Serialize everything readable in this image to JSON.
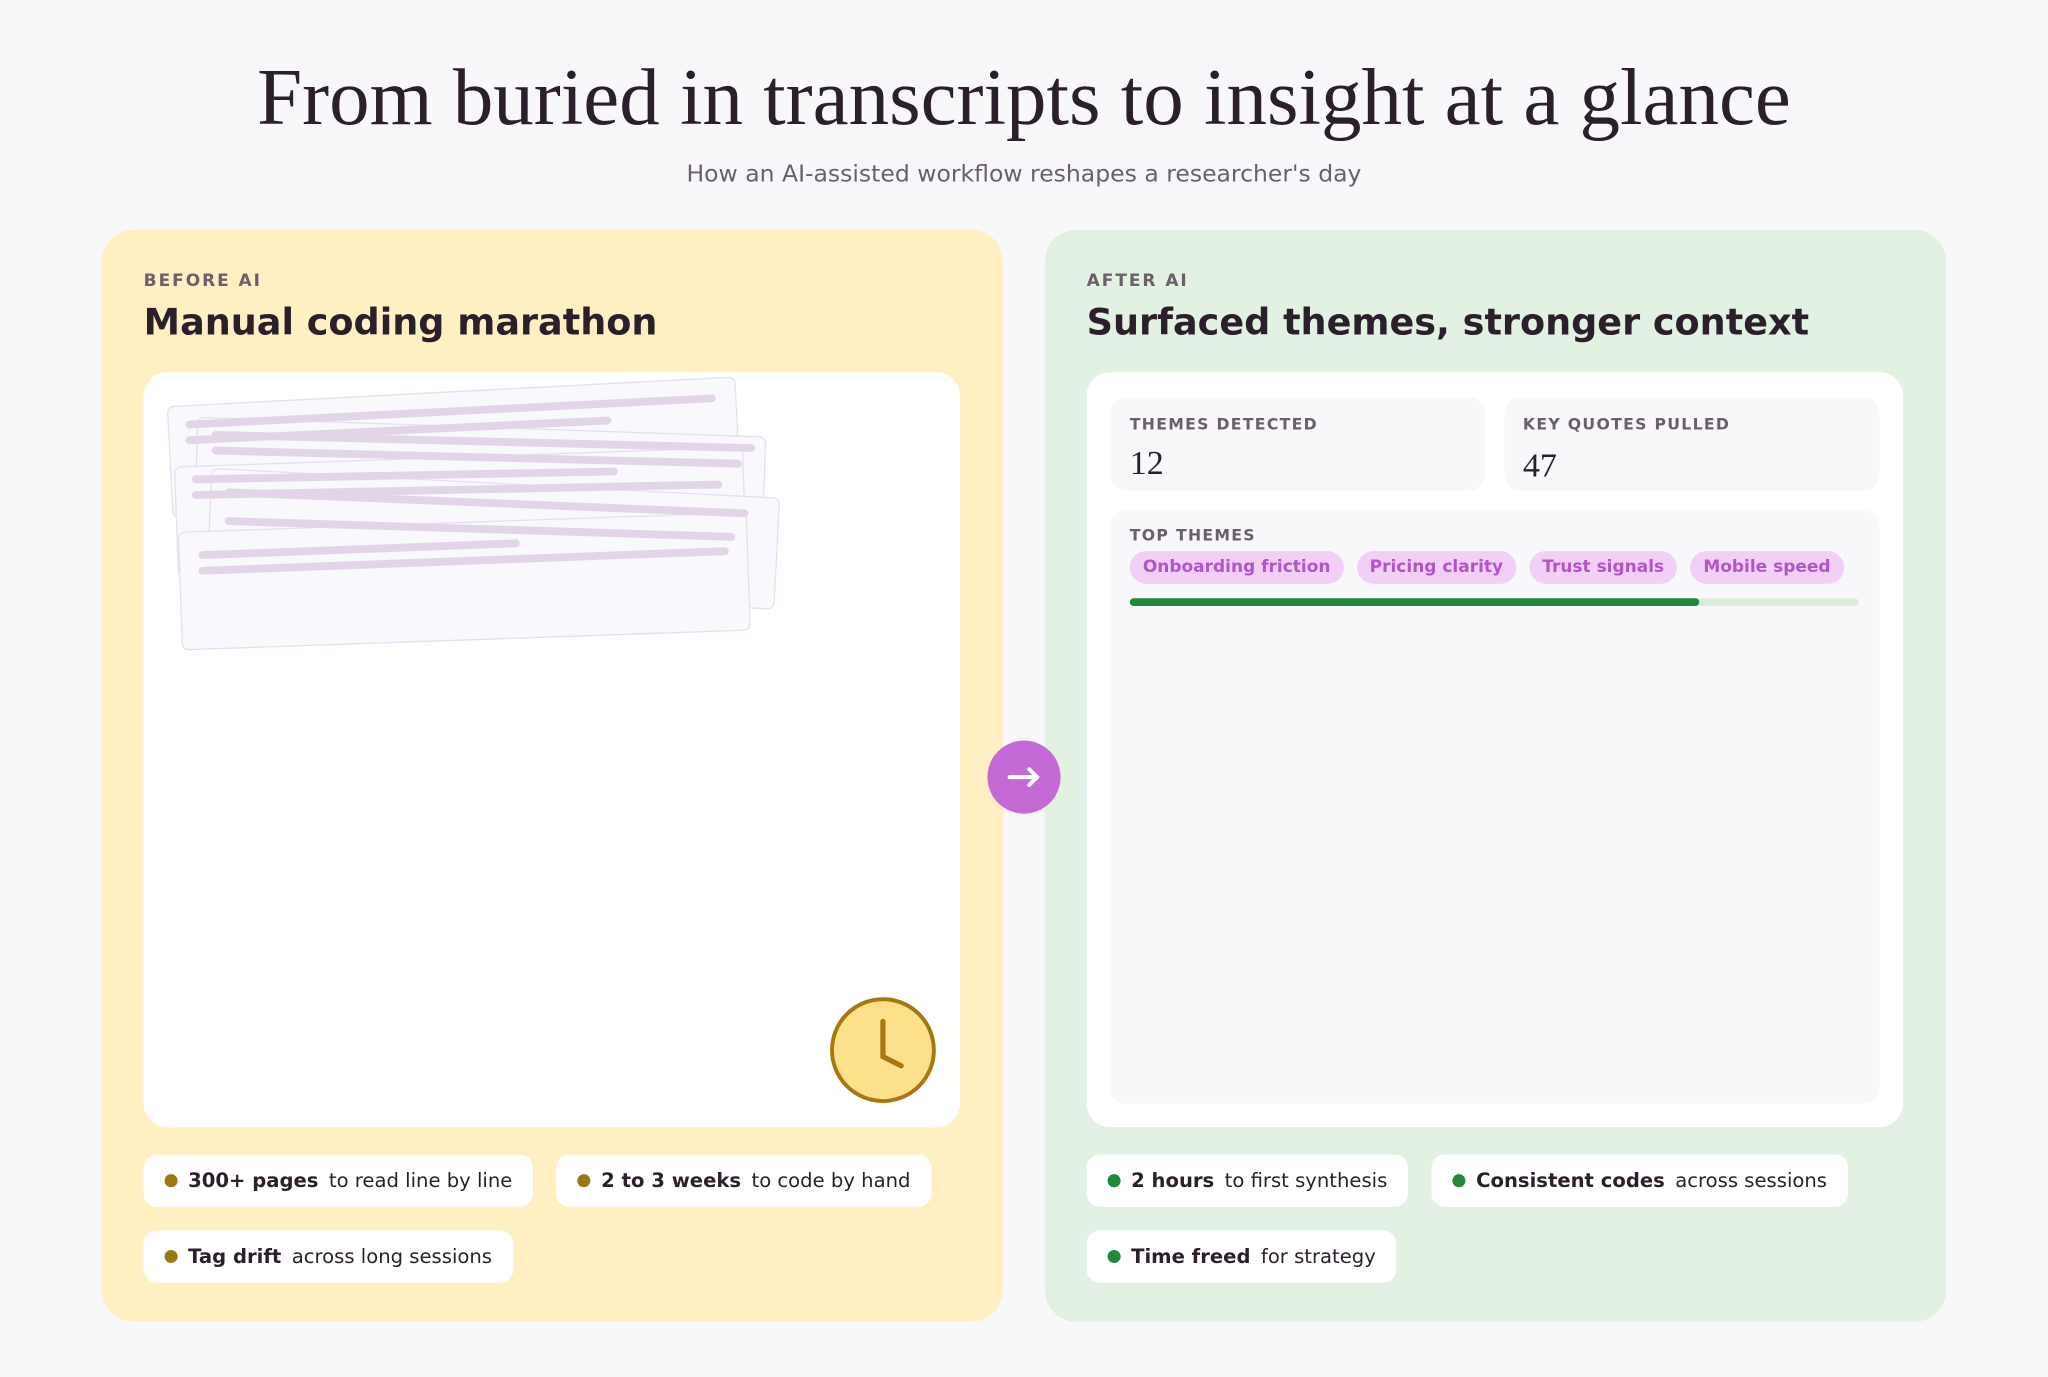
{
  "header": {
    "title": "From buried in transcripts to insight at a glance",
    "subtitle": "How an AI-assisted workflow reshapes a researcher's day"
  },
  "before": {
    "label": "BEFORE AI",
    "title": "Manual coding marathon",
    "stats": [
      {
        "bold": "300+ pages",
        "rest": "to read line by line"
      },
      {
        "bold": "2 to 3 weeks",
        "rest": "to code by hand"
      },
      {
        "bold": "Tag drift",
        "rest": "across long sessions"
      }
    ]
  },
  "after": {
    "label": "AFTER AI",
    "title": "Surfaced themes, stronger context",
    "metrics": [
      {
        "label": "THEMES DETECTED",
        "value": "12"
      },
      {
        "label": "KEY QUOTES PULLED",
        "value": "47"
      }
    ],
    "top_themes": {
      "label": "TOP THEMES",
      "tags": [
        "Onboarding friction",
        "Pricing clarity",
        "Trust signals",
        "Mobile speed"
      ]
    },
    "stats": [
      {
        "bold": "2 hours",
        "rest": "to first synthesis"
      },
      {
        "bold": "Consistent codes",
        "rest": "across sessions"
      },
      {
        "bold": "Time freed",
        "rest": "for strategy"
      }
    ]
  }
}
